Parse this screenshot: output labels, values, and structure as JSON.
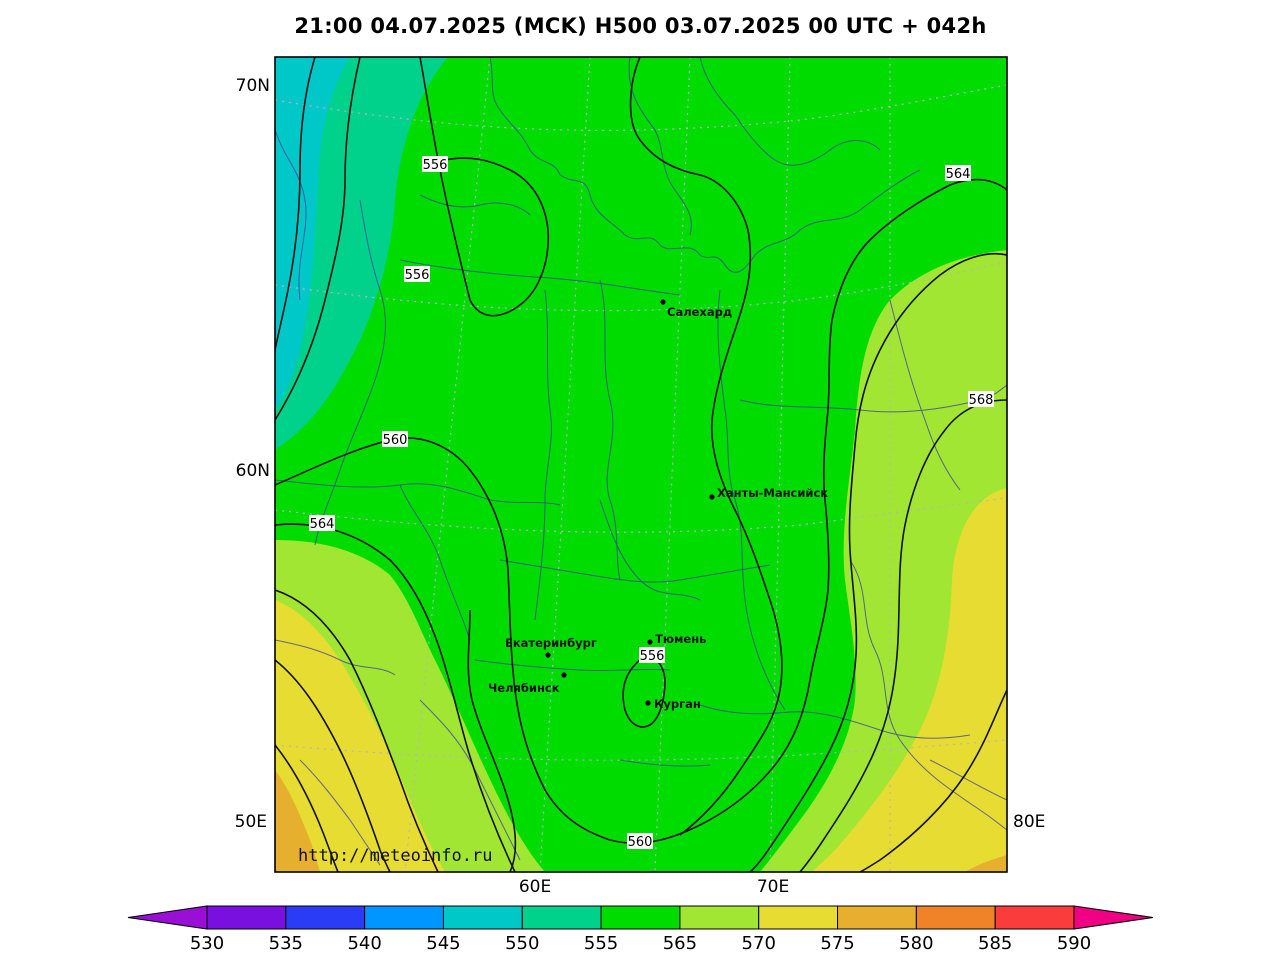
{
  "title": "21:00 04.07.2025 (MCK) H500  03.07.2025 00 UTC + 042h",
  "source_url": "http://meteoinfo.ru",
  "axes": {
    "lat_labels": [
      "70N",
      "60N"
    ],
    "lon_labels_left": [
      "50E"
    ],
    "lon_labels_right": [
      "80E"
    ],
    "lon_labels_bottom": [
      "60E",
      "70E"
    ]
  },
  "contour_labels": [
    "556",
    "556",
    "556",
    "560",
    "560",
    "564",
    "564",
    "568"
  ],
  "cities": [
    {
      "name": "Салехард"
    },
    {
      "name": "Ханты-Мансийск"
    },
    {
      "name": "Екатеринбург"
    },
    {
      "name": "Тюмень"
    },
    {
      "name": "Челябинск"
    },
    {
      "name": "Курган"
    }
  ],
  "colorbar": {
    "labels": [
      "530",
      "535",
      "540",
      "545",
      "550",
      "555",
      "565",
      "570",
      "575",
      "580",
      "585",
      "590"
    ],
    "colors": [
      "#9a0fd6",
      "#7a10e0",
      "#2a3cf5",
      "#0096ff",
      "#00c8c8",
      "#00d28c",
      "#00dc00",
      "#a0e632",
      "#e6dc32",
      "#e6af2d",
      "#f08228",
      "#fa3c3c",
      "#f00082"
    ]
  },
  "field_colors": {
    "c545": "#00c8c8",
    "c550": "#00d28c",
    "c555": "#00dc00",
    "c565": "#a0e632",
    "c570": "#e6dc32",
    "c575": "#e6af2d"
  }
}
